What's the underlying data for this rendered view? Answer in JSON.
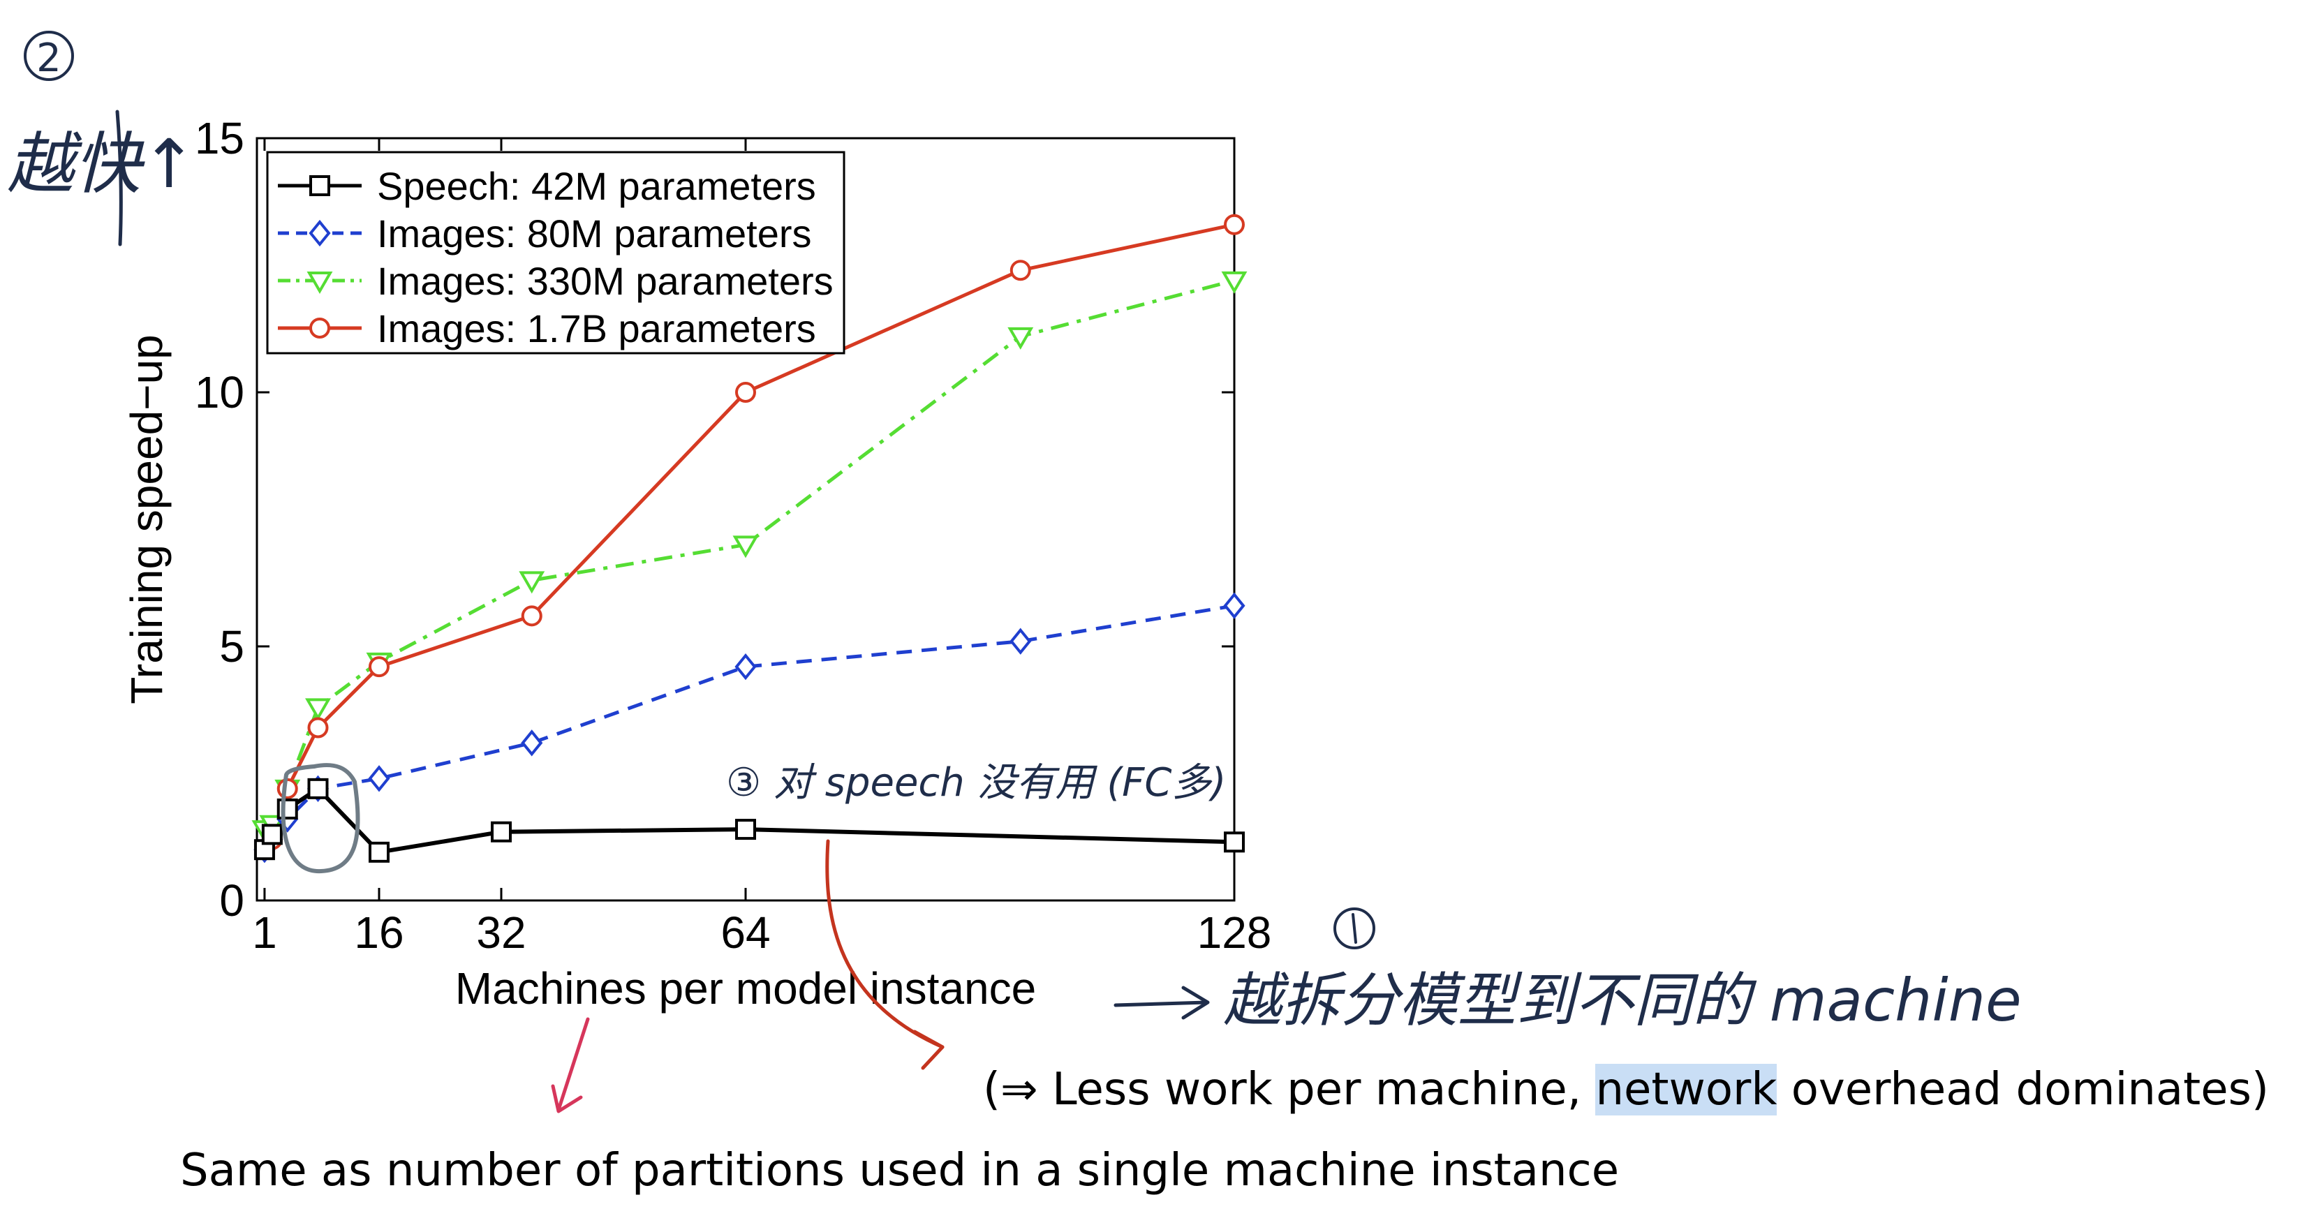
{
  "chart_data": {
    "type": "line",
    "xlabel": "Machines per model instance",
    "ylabel": "Training speed−up",
    "xlim": [
      0,
      128
    ],
    "ylim": [
      0,
      15
    ],
    "xticks": [
      1,
      16,
      32,
      64,
      128
    ],
    "yticks": [
      0,
      5,
      10,
      15
    ],
    "legend_position": "top-left",
    "series": [
      {
        "name": "Speech: 42M parameters",
        "color": "#000000",
        "marker": "square",
        "dash": "solid",
        "points": [
          [
            1,
            1.0
          ],
          [
            2,
            1.3
          ],
          [
            4,
            1.8
          ],
          [
            8,
            2.2
          ],
          [
            16,
            0.95
          ],
          [
            32,
            1.35
          ],
          [
            64,
            1.4
          ],
          [
            128,
            1.15
          ]
        ]
      },
      {
        "name": "Images: 80M parameters",
        "color": "#1f3fcf",
        "marker": "diamond",
        "dash": "dashed",
        "points": [
          [
            1,
            1.0
          ],
          [
            2,
            1.2
          ],
          [
            4,
            1.6
          ],
          [
            8,
            2.2
          ],
          [
            16,
            2.4
          ],
          [
            36,
            3.1
          ],
          [
            64,
            4.6
          ],
          [
            100,
            5.1
          ],
          [
            128,
            5.8
          ]
        ]
      },
      {
        "name": "Images: 330M parameters",
        "color": "#55dd33",
        "marker": "triangle-down",
        "dash": "dashdot",
        "points": [
          [
            1,
            1.4
          ],
          [
            2,
            1.5
          ],
          [
            4,
            2.2
          ],
          [
            8,
            3.8
          ],
          [
            16,
            4.7
          ],
          [
            36,
            6.3
          ],
          [
            64,
            7.0
          ],
          [
            100,
            11.1
          ],
          [
            128,
            12.2
          ]
        ]
      },
      {
        "name": "Images: 1.7B parameters",
        "color": "#d63a22",
        "marker": "circle",
        "dash": "solid",
        "points": [
          [
            1,
            1.0
          ],
          [
            2,
            1.2
          ],
          [
            4,
            2.2
          ],
          [
            8,
            3.4
          ],
          [
            16,
            4.6
          ],
          [
            36,
            5.6
          ],
          [
            64,
            10.0
          ],
          [
            100,
            12.4
          ],
          [
            128,
            13.3
          ]
        ]
      }
    ]
  },
  "annotations": {
    "circled_2": "②",
    "faster_note": "越快↑",
    "speech_note": "③ 对 speech 没有用 (FC多)",
    "circled_1": "①",
    "partition_note": "越拆分模型到不同的 machine",
    "overhead_open": "(⇒ Less work per machine,",
    "overhead_highlight": "network",
    "overhead_close": "overhead dominates)",
    "partitions_note": "Same as number of partitions used in a single machine instance"
  }
}
